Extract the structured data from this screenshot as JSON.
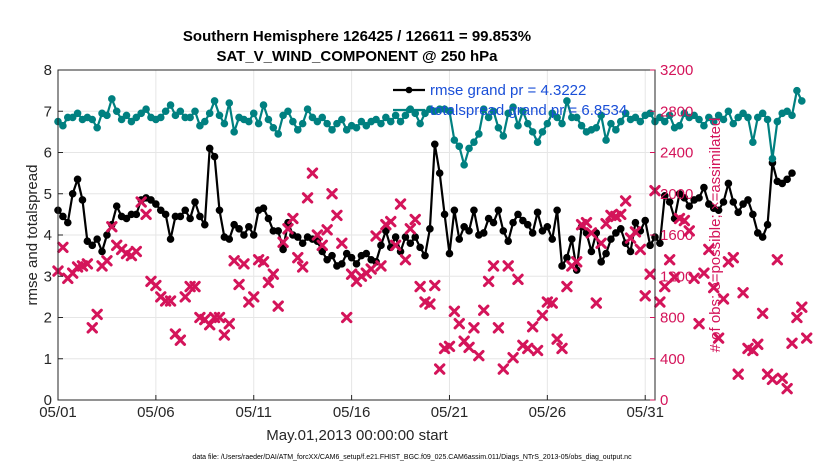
{
  "chart_data": {
    "type": "line",
    "title": "Southern Hemisphere 126425 / 126611 = 99.853%",
    "subtitle": "SAT_V_WIND_COMPONENT @ 250 hPa",
    "xlabel": "May.01,2013 00:00:00 start",
    "ylabel_left": "rmse and totalspread",
    "ylabel_right": "# of obs: o=possible; ×=assimilated",
    "footnote": "data file: /Users/raeder/DAI/ATM_forcXX/CAM6_setup/f.e21.FHIST_BGC.f09_025.CAM6assim.011/Diags_NTrS_2013-05/obs_diag_output.nc",
    "x_tick_labels": [
      "05/01",
      "05/06",
      "05/11",
      "05/16",
      "05/21",
      "05/26",
      "05/31"
    ],
    "x_tick_days": [
      1,
      6,
      11,
      16,
      21,
      26,
      31
    ],
    "xlim": [
      1,
      31.5
    ],
    "ylim_left": [
      0,
      8
    ],
    "yticks_left": [
      "0",
      "1",
      "2",
      "3",
      "4",
      "5",
      "6",
      "7",
      "8"
    ],
    "ylim_right": [
      0,
      3200
    ],
    "yticks_right": [
      "0",
      "400",
      "800",
      "1200",
      "1600",
      "2000",
      "2400",
      "2800",
      "3200"
    ],
    "grid": true,
    "legend": {
      "placement": "top-right",
      "entries": [
        "rmse grand pr = 4.3222",
        "totalspread grand pr = 6.8534"
      ]
    },
    "colors": {
      "rmse": "#000000",
      "totalspread": "#008080",
      "obs": "#d4145a",
      "right_axis": "#d4145a",
      "legend_text": "#1a4fd8"
    },
    "series": [
      {
        "name": "rmse grand pr = 4.3222",
        "axis": "left",
        "x_start_day": 1.0,
        "x_step_day": 0.25,
        "values": [
          4.6,
          4.45,
          4.3,
          5.0,
          5.35,
          4.85,
          3.85,
          3.75,
          3.9,
          3.6,
          4.0,
          4.25,
          4.7,
          4.45,
          4.4,
          4.5,
          4.5,
          4.85,
          4.9,
          4.85,
          4.75,
          4.6,
          4.5,
          3.9,
          4.45,
          4.45,
          4.6,
          4.4,
          4.8,
          4.45,
          4.25,
          6.1,
          5.9,
          4.6,
          3.95,
          3.9,
          4.25,
          4.15,
          4.0,
          4.2,
          4.0,
          4.6,
          4.65,
          4.4,
          4.1,
          4.1,
          3.65,
          4.3,
          4.0,
          3.95,
          3.8,
          3.95,
          3.9,
          3.85,
          3.6,
          3.4,
          3.5,
          3.25,
          3.3,
          3.55,
          3.45,
          3.3,
          3.5,
          3.55,
          3.4,
          3.35,
          3.75,
          4.1,
          3.7,
          3.95,
          3.6,
          3.95,
          3.8,
          3.95,
          3.7,
          3.5,
          4.15,
          6.2,
          5.5,
          4.5,
          3.55,
          4.6,
          3.9,
          4.2,
          4.1,
          4.6,
          4.0,
          4.05,
          4.4,
          4.3,
          4.6,
          4.1,
          3.85,
          4.3,
          4.5,
          4.35,
          4.25,
          4.05,
          4.55,
          4.1,
          4.2,
          3.9,
          4.6,
          3.25,
          3.45,
          3.9,
          3.15,
          4.2,
          4.05,
          3.6,
          4.05,
          3.35,
          3.55,
          3.9,
          4.05,
          4.15,
          3.8,
          3.6,
          4.3,
          4.1,
          4.35,
          3.75,
          3.95,
          3.8,
          4.95,
          4.8,
          4.4,
          5.0,
          4.9,
          4.7,
          4.85,
          4.9,
          5.15,
          4.75,
          4.65,
          4.6,
          4.8,
          5.25,
          4.8,
          4.55,
          4.75,
          4.85,
          4.5,
          4.05,
          3.95,
          4.25,
          5.75,
          5.3,
          5.25,
          5.35,
          5.5
        ]
      },
      {
        "name": "totalspread grand pr = 6.8534",
        "axis": "left",
        "x_start_day": 1.0,
        "x_step_day": 0.25,
        "values": [
          6.75,
          6.65,
          6.85,
          6.85,
          6.95,
          6.8,
          6.85,
          6.8,
          6.6,
          6.95,
          6.9,
          7.3,
          7.0,
          6.8,
          6.9,
          6.75,
          6.85,
          6.95,
          7.05,
          6.85,
          6.8,
          6.85,
          7.0,
          7.15,
          6.9,
          7.0,
          6.85,
          6.85,
          7.0,
          6.65,
          6.75,
          6.95,
          7.25,
          6.9,
          6.7,
          7.2,
          6.5,
          6.85,
          6.8,
          6.75,
          6.95,
          6.7,
          7.15,
          6.8,
          6.6,
          6.45,
          6.9,
          7.0,
          6.75,
          6.55,
          6.7,
          7.05,
          6.85,
          6.75,
          6.85,
          6.7,
          6.55,
          6.7,
          6.8,
          6.55,
          6.65,
          6.6,
          6.75,
          6.65,
          6.75,
          6.8,
          6.7,
          6.85,
          6.75,
          6.9,
          6.75,
          6.9,
          7.05,
          6.95,
          6.7,
          6.95,
          7.05,
          7.0,
          7.05,
          7.05,
          7.0,
          6.3,
          6.15,
          5.7,
          6.1,
          6.25,
          6.45,
          7.05,
          6.85,
          7.0,
          6.6,
          6.4,
          6.95,
          7.1,
          6.65,
          7.0,
          6.7,
          6.5,
          6.25,
          6.5,
          6.7,
          6.95,
          6.85,
          6.7,
          7.25,
          6.85,
          6.85,
          6.65,
          6.5,
          6.55,
          6.6,
          6.9,
          6.3,
          6.7,
          6.55,
          6.75,
          6.95,
          6.8,
          6.85,
          6.75,
          6.9,
          6.95,
          6.75,
          6.85,
          6.75,
          6.9,
          6.6,
          6.65,
          6.95,
          6.85,
          6.9,
          6.8,
          6.65,
          6.85,
          6.75,
          6.9,
          6.8,
          7.0,
          6.7,
          6.85,
          6.95,
          6.85,
          6.25,
          6.85,
          6.95,
          6.8,
          5.85,
          6.75,
          6.95,
          7.0,
          6.9,
          7.5,
          7.25
        ]
      },
      {
        "name": "# of obs assimilated",
        "axis": "right",
        "marker": "x",
        "x_start_day": 1.0,
        "x_step_day": 0.25,
        "values": [
          1250,
          1480,
          1180,
          1230,
          1290,
          1300,
          1320,
          700,
          830,
          1300,
          1350,
          1680,
          1500,
          1460,
          1420,
          1400,
          1440,
          1920,
          1800,
          1150,
          1110,
          1000,
          960,
          960,
          640,
          580,
          1000,
          1100,
          1100,
          800,
          780,
          730,
          800,
          800,
          630,
          740,
          1350,
          1120,
          1320,
          950,
          1000,
          1360,
          1340,
          1140,
          1220,
          910,
          1530,
          1660,
          1760,
          1380,
          1290,
          1960,
          2200,
          1600,
          1500,
          1650,
          2000,
          1790,
          1520,
          800,
          1220,
          1150,
          1200,
          1230,
          1270,
          1590,
          1300,
          1700,
          1730,
          1500,
          1900,
          1360,
          1660,
          1750,
          1100,
          950,
          930,
          1110,
          300,
          500,
          520,
          860,
          740,
          570,
          510,
          700,
          430,
          870,
          1150,
          1300,
          700,
          300,
          1300,
          410,
          1170,
          530,
          500,
          710,
          480,
          820,
          950,
          940,
          590,
          500,
          1100,
          1300,
          1340,
          1700,
          1720,
          1620,
          940,
          1520,
          1710,
          1790,
          1780,
          1800,
          1930,
          1570,
          1630,
          1460,
          1010,
          1220,
          2030,
          950,
          1100,
          1360,
          1190,
          1760,
          1740,
          1640,
          1180,
          740,
          1230,
          1460,
          1090,
          600,
          980,
          1340,
          1380,
          250,
          1040,
          500,
          480,
          540,
          840,
          250,
          200,
          1360,
          210,
          110,
          550,
          800,
          900,
          600
        ]
      }
    ]
  }
}
